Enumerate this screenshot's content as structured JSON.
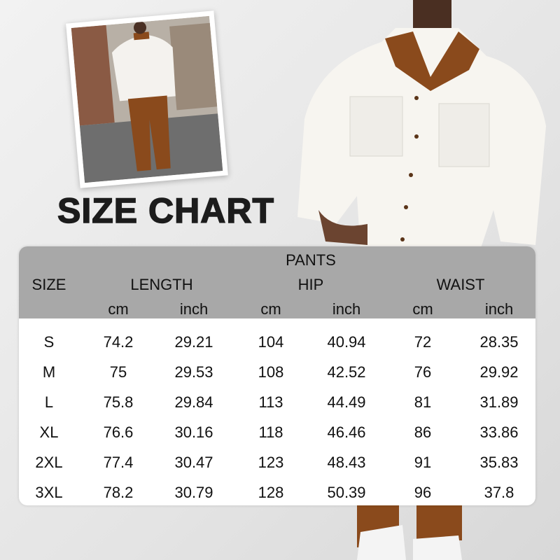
{
  "title": "SIZE CHART",
  "table": {
    "group_header": "PANTS",
    "size_header": "SIZE",
    "measures": [
      "LENGTH",
      "HIP",
      "WAIST"
    ],
    "units": [
      "cm",
      "inch",
      "cm",
      "inch",
      "cm",
      "inch"
    ],
    "rows": [
      [
        "S",
        "74.2",
        "29.21",
        "104",
        "40.94",
        "72",
        "28.35"
      ],
      [
        "M",
        "75",
        "29.53",
        "108",
        "42.52",
        "76",
        "29.92"
      ],
      [
        "L",
        "75.8",
        "29.84",
        "113",
        "44.49",
        "81",
        "31.89"
      ],
      [
        "XL",
        "76.6",
        "30.16",
        "118",
        "46.46",
        "86",
        "33.86"
      ],
      [
        "2XL",
        "77.4",
        "30.47",
        "123",
        "48.43",
        "91",
        "35.83"
      ],
      [
        "3XL",
        "78.2",
        "30.79",
        "128",
        "50.39",
        "96",
        "37.8"
      ]
    ]
  },
  "colors": {
    "header_bg": "#a8a8a8",
    "jacket": "#f7f5f0",
    "collar": "#8a4a1c"
  }
}
